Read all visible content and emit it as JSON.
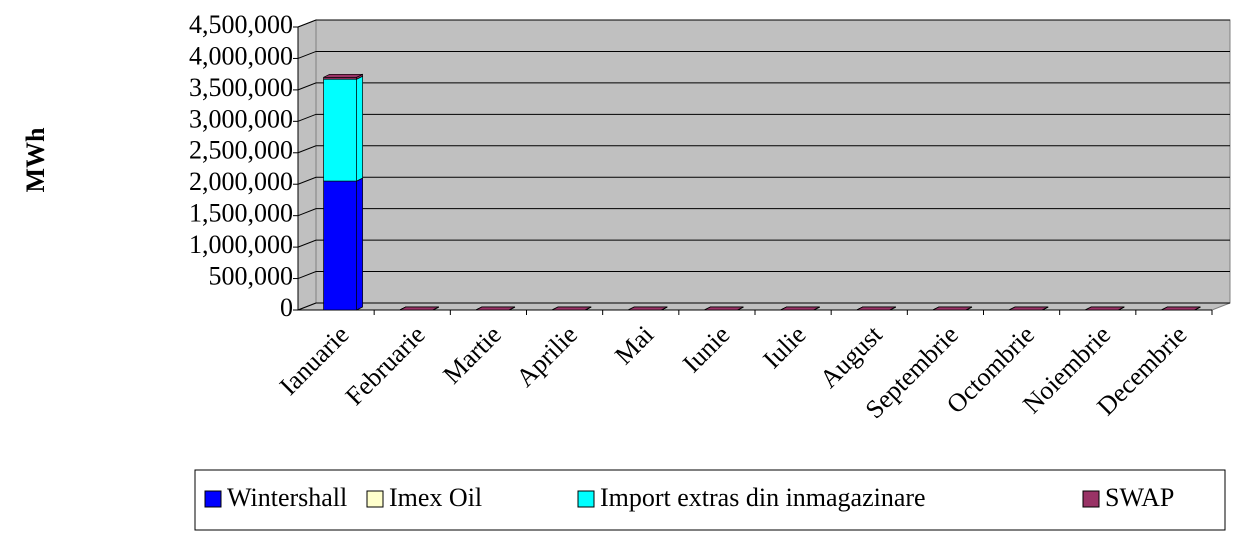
{
  "chart_data": {
    "type": "bar3d_stacked",
    "y_label": "MWh",
    "categories": [
      "Ianuarie",
      "Februarie",
      "Martie",
      "Aprilie",
      "Mai",
      "Iunie",
      "Iulie",
      "August",
      "Septembrie",
      "Octombrie",
      "Noiembrie",
      "Decembrie"
    ],
    "series": [
      {
        "name": "Wintershall",
        "color": "#0000ff",
        "values": [
          2050000,
          0,
          0,
          0,
          0,
          0,
          0,
          0,
          0,
          0,
          0,
          0
        ]
      },
      {
        "name": "Imex Oil",
        "color": "#ffffcc",
        "values": [
          0,
          0,
          0,
          0,
          0,
          0,
          0,
          0,
          0,
          0,
          0,
          0
        ]
      },
      {
        "name": "Import extras din inmagazinare",
        "color": "#00ffff",
        "values": [
          1620000,
          0,
          0,
          0,
          0,
          0,
          0,
          0,
          0,
          0,
          0,
          0
        ]
      },
      {
        "name": "SWAP",
        "color": "#993366",
        "values": [
          30000,
          0,
          0,
          0,
          0,
          0,
          0,
          0,
          0,
          0,
          0,
          0
        ]
      }
    ],
    "ylim": [
      0,
      4500000
    ],
    "yticks": [
      0,
      {
        "value": 500000,
        "label": "500,000"
      },
      {
        "value": 1000000,
        "label": "1,000,000"
      },
      {
        "value": 1500000,
        "label": "1,500,000"
      },
      {
        "value": 2000000,
        "label": "2,000,000"
      },
      {
        "value": 2500000,
        "label": "2,500,000"
      },
      {
        "value": 3000000,
        "label": "3,000,000"
      },
      {
        "value": 3500000,
        "label": "3,500,000"
      },
      {
        "value": 4000000,
        "label": "4,000,000"
      },
      {
        "value": 4500000,
        "label": "4,500,000"
      }
    ],
    "grid": true
  }
}
